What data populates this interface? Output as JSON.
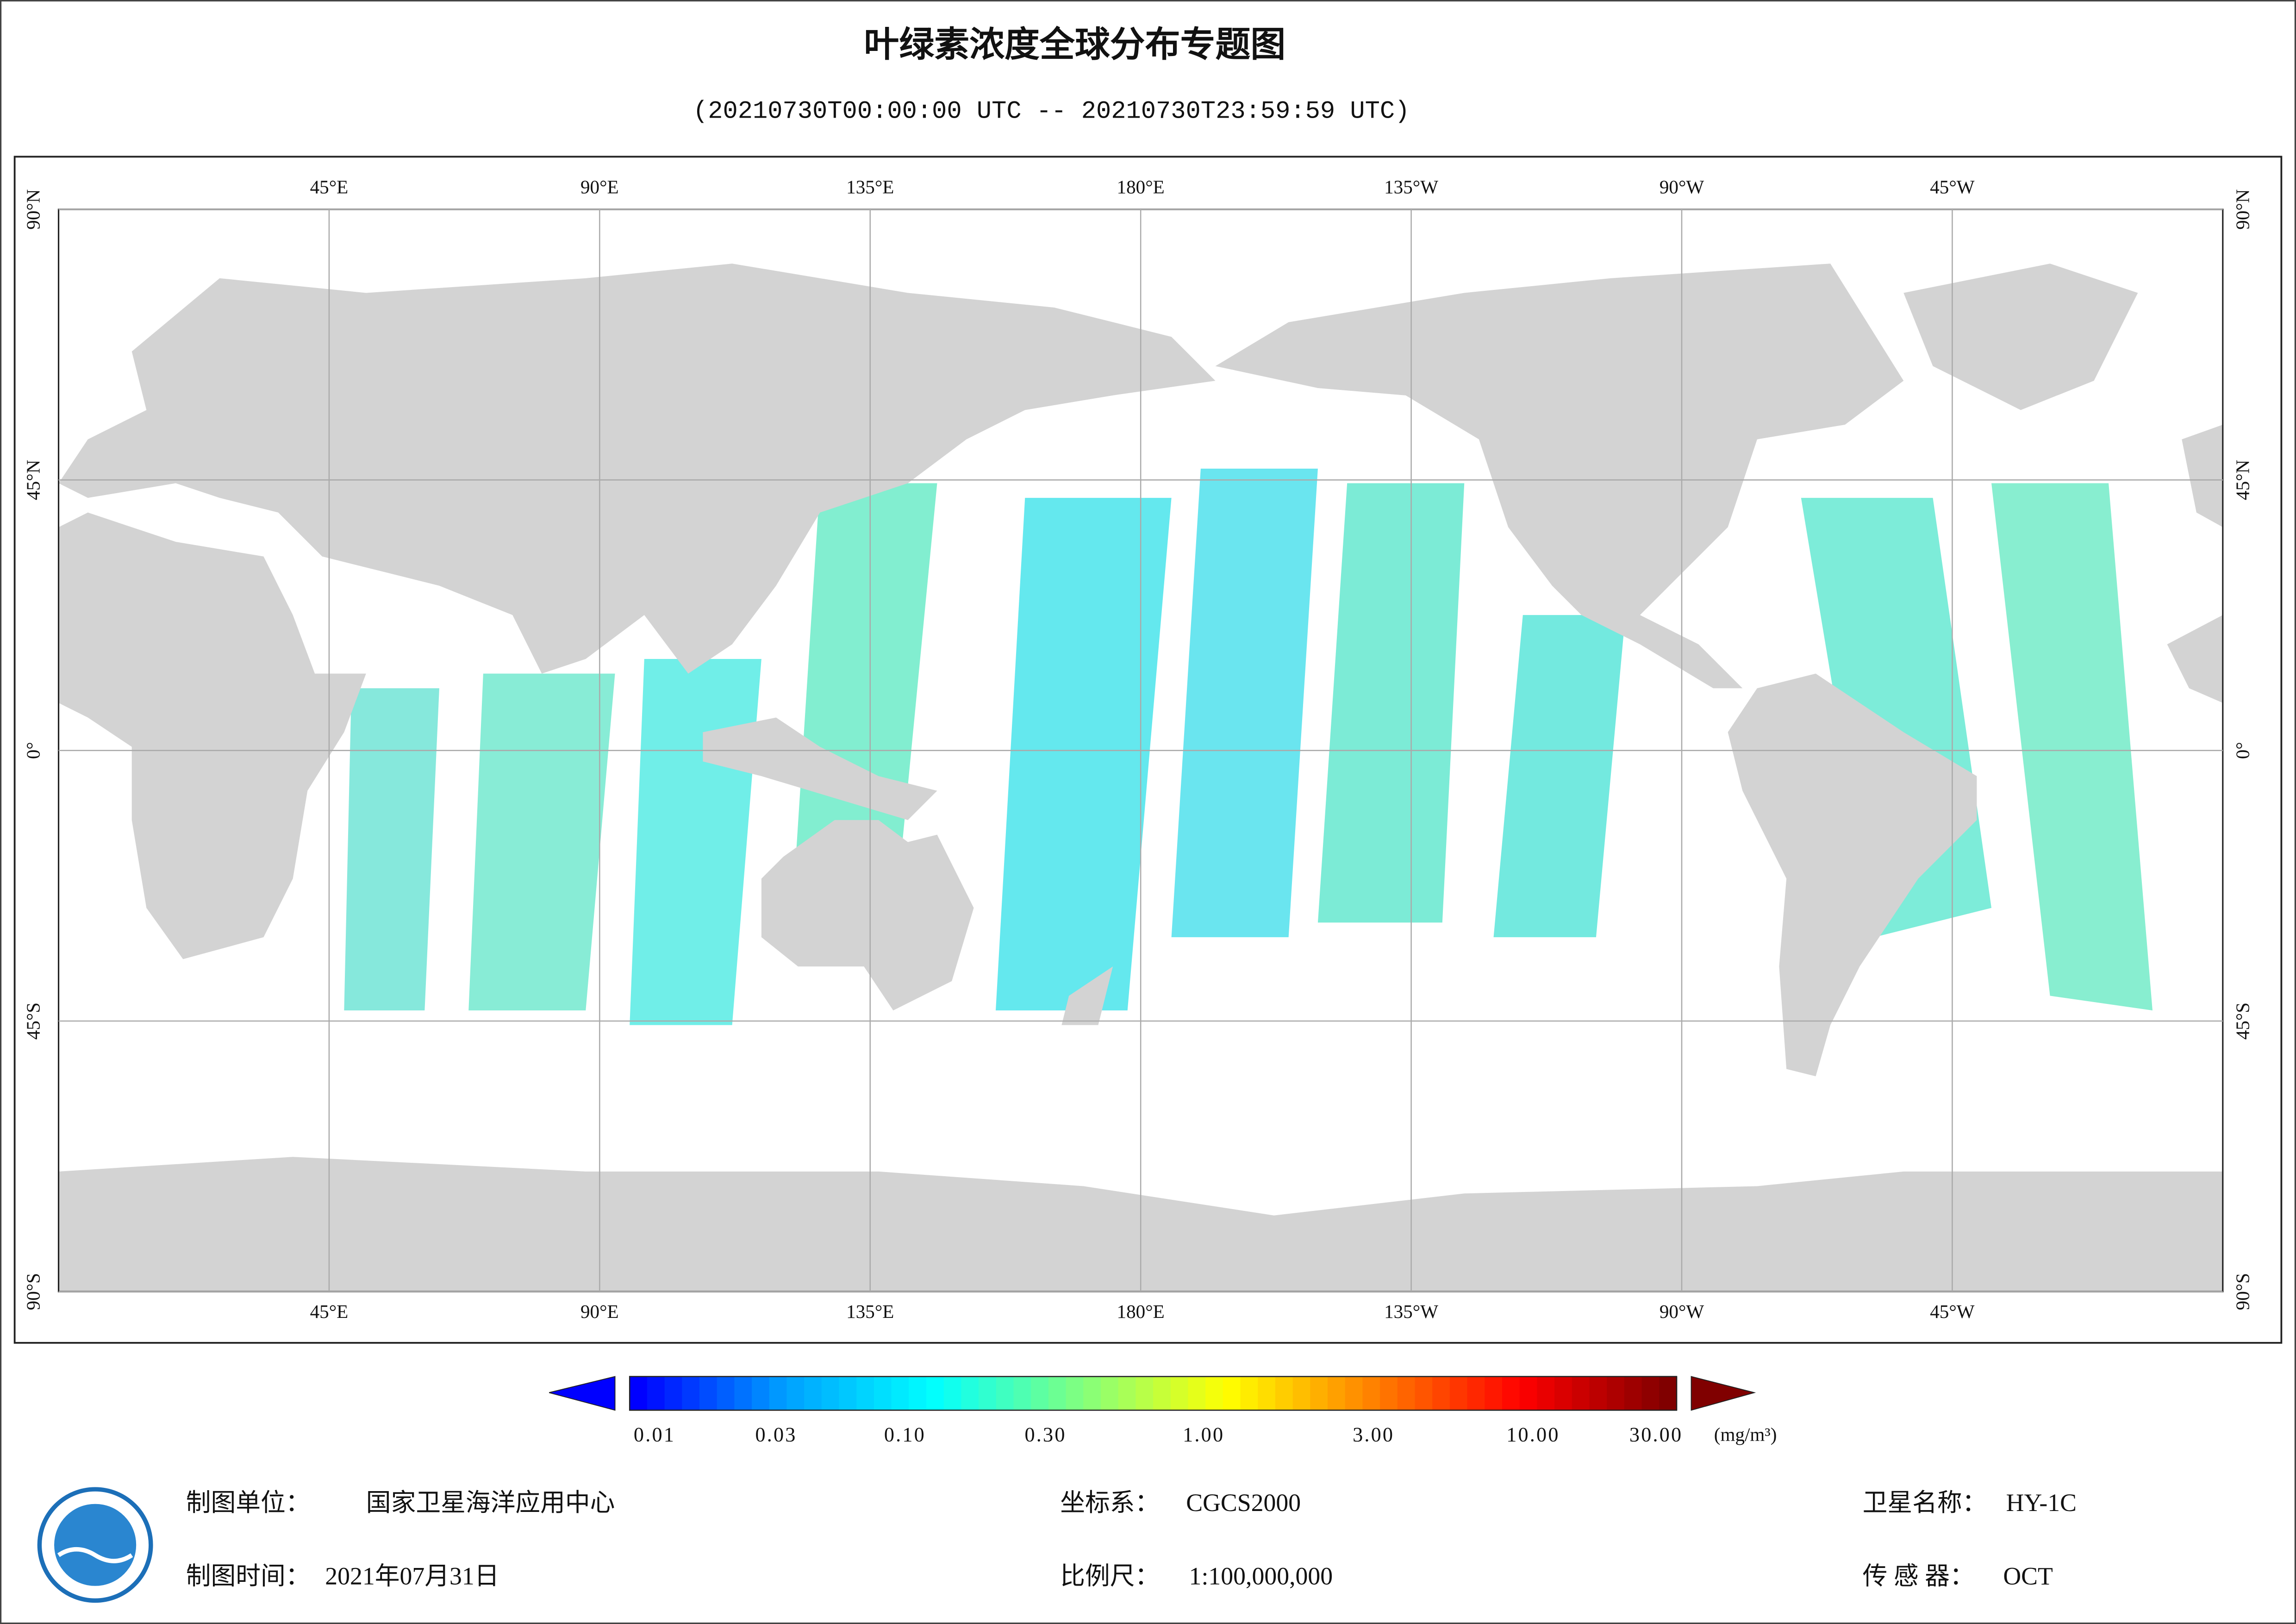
{
  "title": "叶绿素浓度全球分布专题图",
  "subtitle": "(20210730T00:00:00 UTC -- 20210730T23:59:59 UTC)",
  "map": {
    "lon_range": [
      0,
      360
    ],
    "lat_range": [
      -90,
      90
    ],
    "lon_ticks": [
      {
        "value": 45,
        "label": "45°E"
      },
      {
        "value": 90,
        "label": "90°E"
      },
      {
        "value": 135,
        "label": "135°E"
      },
      {
        "value": 180,
        "label": "180°E"
      },
      {
        "value": -135,
        "label": "135°W"
      },
      {
        "value": -90,
        "label": "90°W"
      },
      {
        "value": -45,
        "label": "45°W"
      }
    ],
    "lat_ticks": [
      {
        "value": 90,
        "label": "90°N"
      },
      {
        "value": 45,
        "label": "45°N"
      },
      {
        "value": 0,
        "label": "0°"
      },
      {
        "value": -45,
        "label": "45°S"
      },
      {
        "value": -90,
        "label": "90°S"
      }
    ],
    "grid": true
  },
  "colorbar": {
    "colormap": [
      "#0000ff",
      "#00a0ff",
      "#00ffff",
      "#80ff80",
      "#ffff00",
      "#ff8000",
      "#ff0000",
      "#800000"
    ],
    "ticks": [
      "0.01",
      "0.03",
      "0.10",
      "0.30",
      "1.00",
      "3.00",
      "10.00",
      "30.00"
    ],
    "unit": "(mg/m³)"
  },
  "footer": [
    {
      "label": "制图单位：",
      "value": "国家卫星海洋应用中心"
    },
    {
      "label": "坐标系：",
      "value": "CGCS2000"
    },
    {
      "label": "卫星名称：",
      "value": "HY-1C"
    },
    {
      "label": "制图时间：",
      "value": "2021年07月31日"
    },
    {
      "label": "比例尺：",
      "value": "1:100,000,000"
    },
    {
      "label": "传 感 器：",
      "value": "OCT"
    }
  ]
}
